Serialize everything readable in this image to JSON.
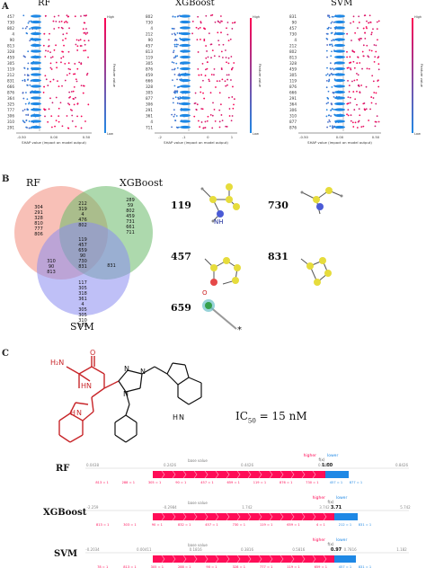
{
  "panel_a": {
    "letter": "A",
    "plots": [
      {
        "title": "RF",
        "features": [
          "457",
          "730",
          "802",
          "4",
          "90",
          "813",
          "328",
          "459",
          "305",
          "119",
          "212",
          "831",
          "666",
          "876",
          "364",
          "325",
          "777",
          "306",
          "310",
          "291"
        ],
        "xticks": [
          "-0.50",
          "0.00",
          "0.50"
        ],
        "xlabel": "SHAP value (impact on model output)",
        "colorbar": {
          "high": "High",
          "low": "Low",
          "label": "Feature value"
        }
      },
      {
        "title": "XGBoost",
        "features": [
          "802",
          "730",
          "4",
          "212",
          "90",
          "457",
          "813",
          "119",
          "305",
          "876",
          "459",
          "666",
          "328",
          "305",
          "877",
          "306",
          "291",
          "361",
          "4",
          "711"
        ],
        "xticks": [
          "-2",
          "-1",
          "0",
          "1"
        ],
        "xlabel": "SHAP value (impact on model output)",
        "colorbar": {
          "high": "High",
          "low": "Low",
          "label": "Feature value"
        }
      },
      {
        "title": "SVM",
        "features": [
          "831",
          "90",
          "457",
          "730",
          "4",
          "212",
          "802",
          "813",
          "328",
          "459",
          "305",
          "119",
          "876",
          "666",
          "291",
          "364",
          "306",
          "310",
          "877",
          "876"
        ],
        "xticks": [
          "-0.50",
          "0.00",
          "0.50"
        ],
        "xlabel": "SHAP value (impact on model output)",
        "colorbar": {
          "high": "High",
          "low": "Low",
          "label": "Feature value"
        }
      }
    ]
  },
  "panel_b": {
    "letter": "B",
    "venn": {
      "rf_label": "RF",
      "xgb_label": "XGBoost",
      "svm_label": "SVM",
      "rf_only": [
        "304",
        "291",
        "328",
        "810",
        "777",
        "806"
      ],
      "rf_xgb": [
        "212",
        "319",
        "4",
        "476",
        "802"
      ],
      "xgb_only": [
        "289",
        "59",
        "802",
        "459",
        "731",
        "661",
        "711"
      ],
      "center": [
        "119",
        "457",
        "659",
        "90",
        "730",
        "831"
      ],
      "rf_svm": [
        "310",
        "90",
        "813"
      ],
      "xgb_svm": [
        "831"
      ],
      "svm_only": [
        "117",
        "305",
        "318",
        "361",
        "4",
        "305",
        "305",
        "310",
        "876"
      ]
    },
    "fragments": [
      {
        "label": "119",
        "atom": "NH"
      },
      {
        "label": "730"
      },
      {
        "label": "457",
        "atom": "O"
      },
      {
        "label": "831"
      },
      {
        "label": "659",
        "mark": "*"
      }
    ]
  },
  "panel_c": {
    "letter": "C",
    "molecule_atoms": [
      "H₂N",
      "O",
      "N",
      "H",
      "N",
      "N",
      "N",
      "H",
      "N",
      "H",
      "N"
    ],
    "ic50_label": "IC",
    "ic50_sub": "50",
    "ic50_value": "= 15 nM",
    "force_plots": [
      {
        "model": "RF",
        "axis_ticks": [
          "0.0438",
          "0.2426",
          "0.4426",
          "0.6426",
          "0.8426"
        ],
        "base_value_label": "base value",
        "higher": "higher",
        "lower": "lower",
        "fx": "f(x)",
        "output": "1.00",
        "positive_features": [
          "813 = 1",
          "288 = 1",
          "305 = 1",
          "90 = 1",
          "457 = 1",
          "659 = 1",
          "119 = 1",
          "876 = 1",
          "730 = 1"
        ],
        "negative_features": [
          "457 = 1",
          "877 = 1"
        ]
      },
      {
        "model": "XGBoost",
        "axis_ticks": [
          "-2.259",
          "-0.2984",
          "1.742",
          "3.742"
        ],
        "base_value_label": "base value",
        "higher": "higher",
        "lower": "lower",
        "fx": "f(x)",
        "output": "3.71",
        "positive_features": [
          "813 = 1",
          "303 = 1",
          "90 = 1",
          "832 = 1",
          "457 = 1",
          "730 = 1",
          "119 = 1",
          "659 = 1",
          "4 = 1"
        ],
        "negative_features": [
          "212 = 1",
          "831 = 1"
        ],
        "axis_end": "5.742"
      },
      {
        "model": "SVM",
        "axis_ticks": [
          "-0.2034",
          "0.00411",
          "0.1816",
          "0.3816",
          "0.5816",
          "0.7816",
          "1.182"
        ],
        "base_value_label": "base value",
        "higher": "higher",
        "lower": "lower",
        "fx": "f(x)",
        "output": "0.97",
        "positive_features": [
          "78 = 1",
          "813 = 1",
          "305 = 1",
          "288 = 1",
          "90 = 1",
          "328 = 1",
          "777 = 1",
          "119 = 1",
          "659 = 1"
        ],
        "negative_features": [
          "457 = 1",
          "831 = 1"
        ]
      }
    ]
  },
  "colors": {
    "shap_low": "#1e88e5",
    "shap_high": "#ff0051",
    "venn_rf": "#f28c7c",
    "venn_xgb": "#6ab96a",
    "venn_svm": "#8b8cf0",
    "force_pos": "#ff0d57",
    "force_neg": "#1e88e5"
  }
}
